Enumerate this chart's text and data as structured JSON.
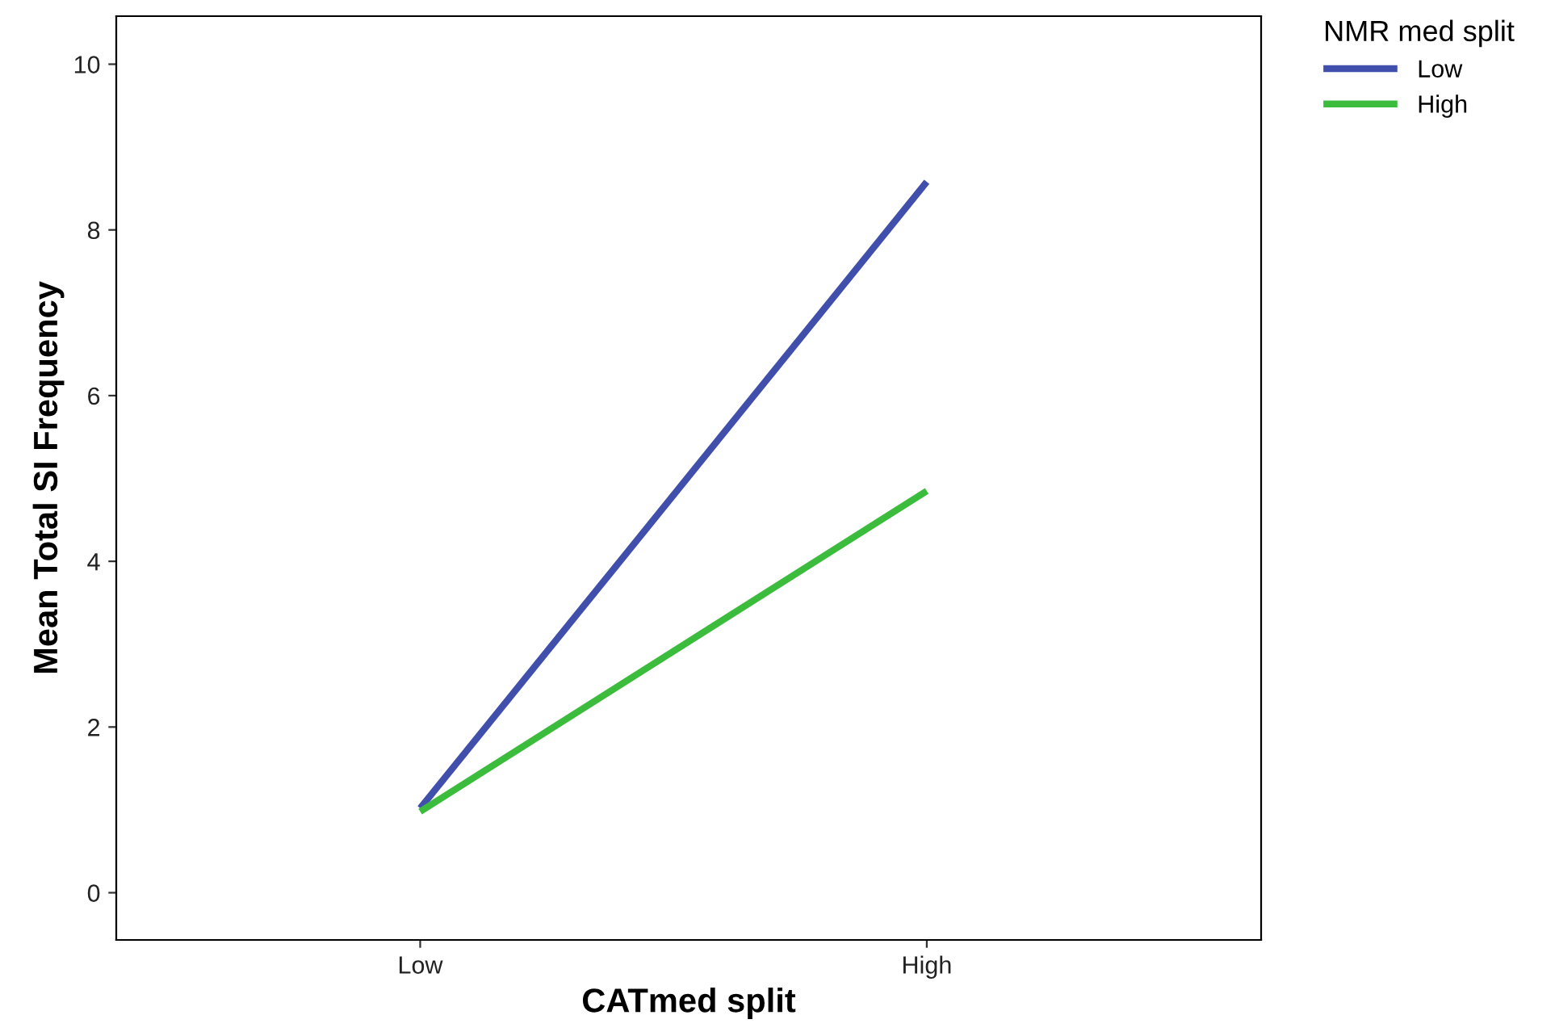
{
  "chart_data": {
    "type": "line",
    "xlabel": "CATmed split",
    "ylabel": "Mean Total SI Frequency",
    "categories": [
      "Low",
      "High"
    ],
    "series": [
      {
        "name": "Low",
        "color": "#3f4fab",
        "values": [
          1.02,
          8.58
        ]
      },
      {
        "name": "High",
        "color": "#3cbc3c",
        "values": [
          0.98,
          4.85
        ]
      }
    ],
    "legend_title": "NMR med split",
    "legend": "top right",
    "ylim": [
      -0.57,
      10.58
    ],
    "yticks": [
      0,
      2,
      4,
      6,
      8,
      10
    ],
    "grid": false,
    "marker": "none",
    "line_style": "solid"
  }
}
